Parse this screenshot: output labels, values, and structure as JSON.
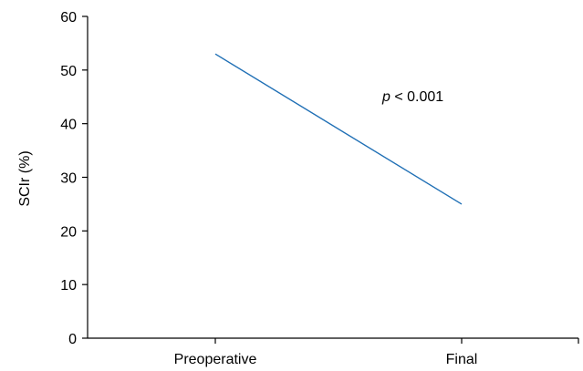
{
  "chart_data": {
    "type": "line",
    "categories": [
      "Preoperative",
      "Final"
    ],
    "values": [
      53,
      25
    ],
    "ylabel": "SCIr (%)",
    "xlabel": "",
    "ylim": [
      0,
      60
    ],
    "yticks": [
      "0",
      "10",
      "20",
      "30",
      "40",
      "50",
      "60"
    ],
    "line_color": "#1f6fb5",
    "annotation": {
      "p_symbol": "p",
      "text": " < 0.001"
    },
    "grid": false
  }
}
